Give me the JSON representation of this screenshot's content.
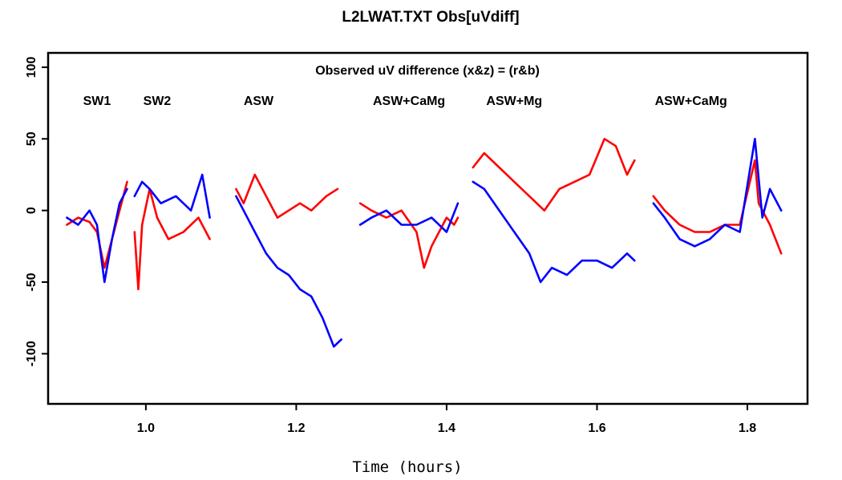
{
  "chart_data": {
    "type": "line",
    "title": "L2LWAT.TXT Obs[uVdiff]",
    "subtitle": "Observed uV difference (x&z) = (r&b)",
    "xlabel": "Time (hours)",
    "ylabel": "",
    "xlim": [
      0.87,
      1.88
    ],
    "ylim": [
      -135,
      110
    ],
    "x_ticks": [
      1.0,
      1.2,
      1.4,
      1.6,
      1.8
    ],
    "x_tick_labels": [
      "1.0",
      "1.2",
      "1.4",
      "1.6",
      "1.8"
    ],
    "y_ticks": [
      -100,
      -50,
      0,
      50,
      100
    ],
    "y_tick_labels": [
      "-100",
      "-50",
      "0",
      "50",
      "100"
    ],
    "grid": false,
    "segment_labels": [
      {
        "text": "SW1",
        "x": 0.935
      },
      {
        "text": "SW2",
        "x": 1.015
      },
      {
        "text": "ASW",
        "x": 1.15
      },
      {
        "text": "ASW+CaMg",
        "x": 1.35
      },
      {
        "text": "ASW+Mg",
        "x": 1.49
      },
      {
        "text": "ASW+CaMg",
        "x": 1.725
      }
    ],
    "series": [
      {
        "color": "#ff0000",
        "segments": [
          {
            "x": [
              0.895,
              0.91,
              0.925,
              0.935,
              0.945,
              0.955,
              0.965,
              0.975
            ],
            "y": [
              -10,
              -5,
              -8,
              -15,
              -40,
              -20,
              0,
              20
            ]
          },
          {
            "x": [
              0.985,
              0.99,
              0.995,
              1.005,
              1.015,
              1.03,
              1.05,
              1.07,
              1.085
            ],
            "y": [
              -15,
              -55,
              -10,
              15,
              -5,
              -20,
              -15,
              -5,
              -20
            ]
          },
          {
            "x": [
              1.12,
              1.13,
              1.145,
              1.16,
              1.175,
              1.19,
              1.205,
              1.22,
              1.24,
              1.255
            ],
            "y": [
              15,
              5,
              25,
              10,
              -5,
              0,
              5,
              0,
              10,
              15
            ]
          },
          {
            "x": [
              1.285,
              1.3,
              1.32,
              1.34,
              1.36,
              1.37,
              1.38,
              1.4,
              1.41,
              1.415
            ],
            "y": [
              5,
              0,
              -5,
              0,
              -15,
              -40,
              -25,
              -5,
              -10,
              -5
            ]
          },
          {
            "x": [
              1.435,
              1.45,
              1.47,
              1.49,
              1.51,
              1.53,
              1.55,
              1.57,
              1.59,
              1.61,
              1.625,
              1.64,
              1.65
            ],
            "y": [
              30,
              40,
              30,
              20,
              10,
              0,
              15,
              20,
              25,
              50,
              45,
              25,
              35
            ]
          },
          {
            "x": [
              1.675,
              1.69,
              1.71,
              1.73,
              1.75,
              1.77,
              1.79,
              1.81,
              1.815,
              1.83,
              1.845
            ],
            "y": [
              10,
              0,
              -10,
              -15,
              -15,
              -10,
              -10,
              35,
              5,
              -10,
              -30
            ]
          }
        ]
      },
      {
        "color": "#0000ff",
        "segments": [
          {
            "x": [
              0.895,
              0.91,
              0.925,
              0.935,
              0.945,
              0.955,
              0.965,
              0.975
            ],
            "y": [
              -5,
              -10,
              0,
              -10,
              -50,
              -20,
              5,
              15
            ]
          },
          {
            "x": [
              0.985,
              0.995,
              1.005,
              1.02,
              1.04,
              1.06,
              1.075,
              1.085
            ],
            "y": [
              10,
              20,
              15,
              5,
              10,
              0,
              25,
              -5
            ]
          },
          {
            "x": [
              1.12,
              1.13,
              1.145,
              1.16,
              1.175,
              1.19,
              1.205,
              1.22,
              1.235,
              1.25,
              1.26
            ],
            "y": [
              10,
              0,
              -15,
              -30,
              -40,
              -45,
              -55,
              -60,
              -75,
              -95,
              -90
            ]
          },
          {
            "x": [
              1.285,
              1.3,
              1.32,
              1.34,
              1.36,
              1.38,
              1.4,
              1.415
            ],
            "y": [
              -10,
              -5,
              0,
              -10,
              -10,
              -5,
              -15,
              5
            ]
          },
          {
            "x": [
              1.435,
              1.45,
              1.47,
              1.49,
              1.51,
              1.525,
              1.54,
              1.56,
              1.58,
              1.6,
              1.62,
              1.64,
              1.65
            ],
            "y": [
              20,
              15,
              0,
              -15,
              -30,
              -50,
              -40,
              -45,
              -35,
              -35,
              -40,
              -30,
              -35
            ]
          },
          {
            "x": [
              1.675,
              1.69,
              1.71,
              1.73,
              1.75,
              1.77,
              1.79,
              1.81,
              1.82,
              1.83,
              1.845
            ],
            "y": [
              5,
              -5,
              -20,
              -25,
              -20,
              -10,
              -15,
              50,
              -5,
              15,
              0
            ]
          }
        ]
      }
    ]
  }
}
